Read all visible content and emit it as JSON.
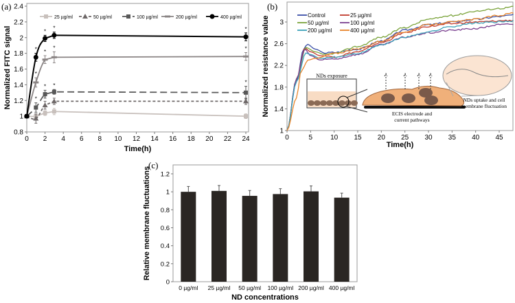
{
  "chart_data": [
    {
      "panel_label": "(a)",
      "type": "line",
      "xlabel": "Time(h)",
      "ylabel": "Normalized FITC signal",
      "xlim": [
        0,
        24
      ],
      "ylim": [
        0.8,
        2.4
      ],
      "xticks": [
        0,
        2,
        4,
        6,
        8,
        10,
        12,
        14,
        16,
        18,
        20,
        22,
        24
      ],
      "yticks": [
        "0.8",
        "1",
        "1.2",
        "1.4",
        "1.6",
        "1.8",
        "2",
        "2.2",
        "2.4"
      ],
      "legend": "top",
      "grid": false,
      "x": [
        0,
        1,
        2,
        3,
        24
      ],
      "series": [
        {
          "name": "25 µg/ml",
          "values": [
            1,
            1.0,
            1.04,
            1.06,
            1.0
          ],
          "errors": [
            0,
            0.03,
            0.03,
            0.04,
            0.03
          ],
          "color": "#c8c0bc",
          "dash": "",
          "marker": "square"
        },
        {
          "name": "50 µg/ml",
          "values": [
            1,
            0.97,
            1.14,
            1.19,
            1.19
          ],
          "errors": [
            0,
            0.06,
            0.05,
            0.04,
            0.04
          ],
          "color": "#6e6868",
          "dash": "4,3",
          "marker": "triangle"
        },
        {
          "name": "100 µg/ml",
          "values": [
            1,
            1.11,
            1.28,
            1.31,
            1.3
          ],
          "errors": [
            0,
            0.06,
            0.05,
            0.03,
            0.08
          ],
          "color": "#585858",
          "dash": "10,5",
          "marker": "square"
        },
        {
          "name": "200 µg/ml",
          "values": [
            1,
            1.43,
            1.72,
            1.75,
            1.76
          ],
          "errors": [
            0,
            0.06,
            0.05,
            0.07,
            0.05
          ],
          "color": "#8a8484",
          "dash": "",
          "marker": "dash"
        },
        {
          "name": "400 µg/ml",
          "values": [
            1,
            1.75,
            1.99,
            2.03,
            2.01
          ],
          "errors": [
            0,
            0.05,
            0.04,
            0.04,
            0.05
          ],
          "color": "#000000",
          "dash": "",
          "marker": "circle"
        }
      ],
      "significance_marker": "*"
    },
    {
      "panel_label": "(b)",
      "type": "line",
      "xlabel": "Time(h)",
      "ylabel": "Normalized resistance value",
      "xlim": [
        0,
        48
      ],
      "ylim": [
        1,
        3.25
      ],
      "xticks": [
        0,
        5,
        10,
        15,
        20,
        25,
        30,
        35,
        40,
        45
      ],
      "yticks": [
        "1",
        "1.4",
        "1.8",
        "2.2",
        "2.6",
        "3"
      ],
      "legend": "top-left",
      "grid": false,
      "series": [
        {
          "name": "Control",
          "color": "#3a4fa8",
          "points": [
            [
              0,
              1
            ],
            [
              2,
              1.9
            ],
            [
              3.5,
              2.5
            ],
            [
              4.3,
              2.59
            ],
            [
              6,
              2.5
            ],
            [
              8,
              2.43
            ],
            [
              10,
              2.44
            ],
            [
              15,
              2.5
            ],
            [
              20,
              2.65
            ],
            [
              25,
              2.85
            ],
            [
              30,
              2.95
            ],
            [
              35,
              3.0
            ],
            [
              40,
              3.05
            ],
            [
              45,
              3.1
            ],
            [
              48,
              3.13
            ]
          ]
        },
        {
          "name": "25 µg/ml",
          "color": "#c0392b",
          "points": [
            [
              0,
              1
            ],
            [
              2,
              1.95
            ],
            [
              3.8,
              2.52
            ],
            [
              5,
              2.45
            ],
            [
              7,
              2.38
            ],
            [
              10,
              2.36
            ],
            [
              15,
              2.45
            ],
            [
              20,
              2.62
            ],
            [
              25,
              2.8
            ],
            [
              30,
              2.92
            ],
            [
              35,
              2.97
            ],
            [
              40,
              3.0
            ],
            [
              48,
              3.03
            ]
          ]
        },
        {
          "name": "50 µg/ml",
          "color": "#7aa33a",
          "points": [
            [
              0,
              1
            ],
            [
              2,
              1.95
            ],
            [
              4,
              2.53
            ],
            [
              6,
              2.45
            ],
            [
              8,
              2.4
            ],
            [
              10,
              2.42
            ],
            [
              15,
              2.55
            ],
            [
              20,
              2.72
            ],
            [
              25,
              2.9
            ],
            [
              30,
              3.05
            ],
            [
              35,
              3.12
            ],
            [
              40,
              3.2
            ],
            [
              45,
              3.25
            ],
            [
              48,
              3.28
            ]
          ]
        },
        {
          "name": "100 µg/ml",
          "color": "#7a3f8f",
          "points": [
            [
              0,
              1
            ],
            [
              2,
              1.95
            ],
            [
              3.8,
              2.5
            ],
            [
              5,
              2.38
            ],
            [
              7,
              2.3
            ],
            [
              10,
              2.32
            ],
            [
              15,
              2.4
            ],
            [
              20,
              2.58
            ],
            [
              25,
              2.72
            ],
            [
              30,
              2.8
            ],
            [
              35,
              2.85
            ],
            [
              40,
              2.88
            ],
            [
              45,
              2.95
            ],
            [
              48,
              2.96
            ]
          ]
        },
        {
          "name": "200 µg/ml",
          "color": "#3aa0b8",
          "points": [
            [
              0,
              1
            ],
            [
              2,
              1.9
            ],
            [
              4,
              2.43
            ],
            [
              5,
              2.4
            ],
            [
              7,
              2.33
            ],
            [
              10,
              2.35
            ],
            [
              15,
              2.42
            ],
            [
              20,
              2.58
            ],
            [
              25,
              2.72
            ],
            [
              30,
              2.82
            ],
            [
              35,
              2.92
            ],
            [
              40,
              2.98
            ],
            [
              45,
              3.0
            ],
            [
              48,
              3.02
            ]
          ]
        },
        {
          "name": "400 µg/ml",
          "color": "#e8842a",
          "points": [
            [
              0,
              1
            ],
            [
              2,
              1.6
            ],
            [
              3,
              2.1
            ],
            [
              4.5,
              2.3
            ],
            [
              6,
              2.33
            ],
            [
              10,
              2.42
            ],
            [
              15,
              2.5
            ],
            [
              20,
              2.65
            ],
            [
              25,
              2.82
            ],
            [
              30,
              2.95
            ],
            [
              35,
              3.0
            ],
            [
              40,
              3.05
            ],
            [
              45,
              3.12
            ],
            [
              48,
              3.17
            ]
          ]
        }
      ],
      "inset": {
        "exposure_label": "NDs exposure",
        "electrode_label": "ECIS electrode and current pathways",
        "uptake_label": "NDs uptake and cell membrane fluctuation",
        "cell_color": "#f0b07a",
        "nucleus_color": "#7a5a4a"
      }
    },
    {
      "panel_label": "(c)",
      "type": "bar",
      "xlabel": "ND concentrations",
      "ylabel": "Relative membrane fluctuations",
      "ylim": [
        0,
        1.3
      ],
      "yticks": [
        "0",
        "0.2",
        "0.4",
        "0.6",
        "0.8",
        "1",
        "1.2"
      ],
      "grid": false,
      "categories": [
        "0 µg/ml",
        "25 µg/ml",
        "50 µg/ml",
        "100 µg/ml",
        "200 µg/ml",
        "400 µg/ml"
      ],
      "values": [
        1.0,
        1.01,
        0.955,
        0.975,
        1.005,
        0.935
      ],
      "errors": [
        0.06,
        0.06,
        0.06,
        0.06,
        0.06,
        0.05
      ],
      "color": "#2a2623"
    }
  ]
}
